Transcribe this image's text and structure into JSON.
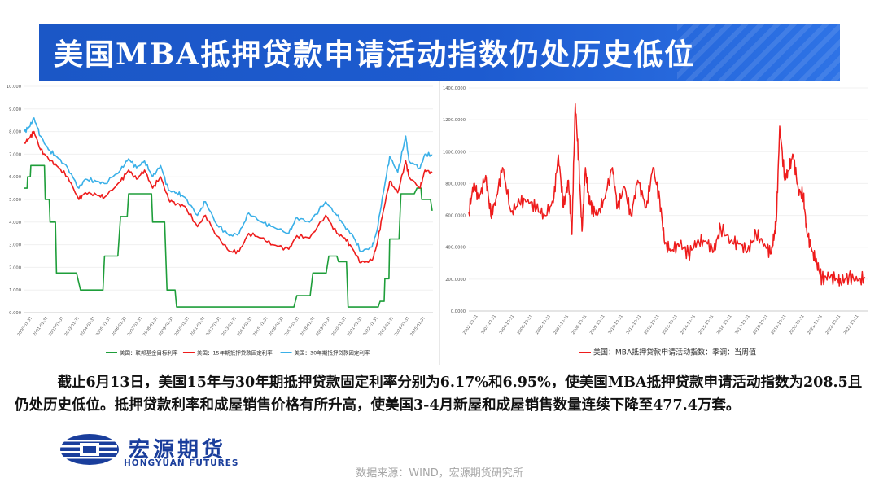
{
  "title": "美国MBA抵押贷款申请活动指数仍处历史低位",
  "description": "截止6月13日，美国15年与30年期抵押贷款固定利率分别为6.17%和6.95%，使美国MBA抵押贷款申请活动指数为208.5且仍处历史低位。抵押贷款利率和成屋销售价格有所升高，使美国3-4月新屋和成屋销售数量连续下降至477.4万套。",
  "logo": {
    "name_cn": "宏源期货",
    "name_en": "HONGYUAN FUTURES"
  },
  "source": "数据来源：WIND，宏源期货研究所",
  "colors": {
    "banner": "#1d5bd0",
    "green": "#1e9e3a",
    "red": "#ee1c1c",
    "blue": "#3ab0e8",
    "brand": "#1a3e9c"
  },
  "chart_data": [
    {
      "type": "line",
      "ylim": [
        0,
        10
      ],
      "y_ticks": [
        "0.000",
        "1.000",
        "2.000",
        "3.000",
        "4.000",
        "5.000",
        "6.000",
        "7.000",
        "8.000",
        "9.000",
        "10.000"
      ],
      "series": [
        {
          "name": "美国：联邦基金目标利率",
          "color": "#1e9e3a",
          "x": [
            2000.0,
            2000.2,
            2000.4,
            2001.0,
            2001.3,
            2001.6,
            2002.0,
            2003.5,
            2004.4,
            2005.0,
            2006.0,
            2006.5,
            2007.6,
            2008.0,
            2008.9,
            2009.5,
            2015.9,
            2017.0,
            2018.0,
            2019.0,
            2019.6,
            2020.2,
            2020.5,
            2021.5,
            2022.2,
            2022.5,
            2022.8,
            2023.5,
            2024.5,
            2024.8,
            2025.45
          ],
          "values": [
            5.5,
            6.0,
            6.5,
            6.5,
            5.0,
            4.0,
            1.75,
            1.0,
            1.0,
            2.5,
            4.25,
            5.25,
            5.25,
            4.0,
            1.0,
            0.25,
            0.25,
            0.75,
            1.75,
            2.5,
            2.25,
            0.25,
            0.25,
            0.25,
            0.5,
            1.5,
            3.25,
            5.25,
            5.5,
            5.0,
            4.5
          ]
        },
        {
          "name": "美国：15年期抵押贷款固定利率",
          "color": "#ee1c1c",
          "x": [
            2000.0,
            2000.3,
            2000.6,
            2001.0,
            2001.5,
            2002.0,
            2002.7,
            2003.4,
            2003.8,
            2004.5,
            2005.0,
            2006.0,
            2006.5,
            2007.0,
            2007.5,
            2008.0,
            2008.5,
            2009.0,
            2009.5,
            2010.0,
            2010.8,
            2011.3,
            2012.0,
            2012.8,
            2013.4,
            2014.0,
            2014.8,
            2015.5,
            2016.5,
            2017.0,
            2017.8,
            2018.8,
            2019.5,
            2020.0,
            2020.5,
            2021.0,
            2021.7,
            2022.0,
            2022.4,
            2022.8,
            2023.3,
            2023.8,
            2024.0,
            2024.7,
            2025.0,
            2025.45
          ],
          "values": [
            7.5,
            7.7,
            8.0,
            7.2,
            6.8,
            6.5,
            6.0,
            5.0,
            5.3,
            5.2,
            5.1,
            5.8,
            6.3,
            5.9,
            6.3,
            5.5,
            6.0,
            5.0,
            4.8,
            4.7,
            3.8,
            4.3,
            3.4,
            2.7,
            2.7,
            3.5,
            3.3,
            3.0,
            2.8,
            3.4,
            3.3,
            4.3,
            3.5,
            3.3,
            2.8,
            2.2,
            2.3,
            3.0,
            4.5,
            5.8,
            5.3,
            6.7,
            6.0,
            5.5,
            6.3,
            6.17
          ]
        },
        {
          "name": "美国：30年期抵押贷款固定利率",
          "color": "#3ab0e8",
          "x": [
            2000.0,
            2000.3,
            2000.6,
            2001.0,
            2001.5,
            2002.0,
            2002.7,
            2003.4,
            2003.8,
            2004.5,
            2005.0,
            2006.0,
            2006.5,
            2007.0,
            2007.5,
            2008.0,
            2008.5,
            2009.0,
            2009.5,
            2010.0,
            2010.8,
            2011.3,
            2012.0,
            2012.8,
            2013.4,
            2014.0,
            2014.8,
            2015.5,
            2016.5,
            2017.0,
            2017.8,
            2018.8,
            2019.5,
            2020.0,
            2020.5,
            2021.0,
            2021.7,
            2022.0,
            2022.4,
            2022.8,
            2023.3,
            2023.8,
            2024.0,
            2024.7,
            2025.0,
            2025.45
          ],
          "values": [
            8.0,
            8.2,
            8.6,
            7.8,
            7.2,
            6.9,
            6.4,
            5.5,
            5.9,
            5.8,
            5.7,
            6.3,
            6.8,
            6.4,
            6.7,
            6.0,
            6.5,
            5.4,
            5.3,
            5.1,
            4.3,
            4.9,
            3.9,
            3.4,
            3.5,
            4.4,
            4.0,
            3.8,
            3.5,
            4.2,
            4.0,
            4.9,
            4.3,
            3.8,
            3.4,
            2.7,
            2.9,
            3.6,
            5.3,
            6.9,
            6.2,
            7.8,
            6.7,
            6.4,
            7.0,
            6.95
          ]
        }
      ]
    },
    {
      "type": "line",
      "ylim": [
        0,
        1400
      ],
      "y_ticks": [
        "0.0000",
        "200.0000",
        "400.0000",
        "600.0000",
        "800.0000",
        "1000.0000",
        "1200.0000",
        "1400.0000"
      ],
      "series": [
        {
          "name": "美国：MBA抵押贷款申请活动指数：季调：当周值",
          "color": "#ee1c1c",
          "x": [
            2002.0,
            2002.3,
            2002.6,
            2003.0,
            2003.3,
            2003.6,
            2004.0,
            2004.5,
            2005.0,
            2005.5,
            2006.0,
            2006.5,
            2007.0,
            2007.3,
            2007.6,
            2007.9,
            2008.1,
            2008.3,
            2008.5,
            2008.7,
            2008.9,
            2009.1,
            2009.3,
            2009.6,
            2010.0,
            2010.5,
            2010.8,
            2011.2,
            2011.6,
            2012.0,
            2012.5,
            2012.9,
            2013.3,
            2013.6,
            2014.0,
            2014.5,
            2015.0,
            2015.5,
            2016.0,
            2016.5,
            2016.9,
            2017.5,
            2018.0,
            2018.5,
            2019.0,
            2019.5,
            2019.9,
            2020.1,
            2020.2,
            2020.4,
            2020.7,
            2020.9,
            2021.2,
            2021.5,
            2021.8,
            2022.0,
            2022.3,
            2022.6,
            2022.9,
            2023.3,
            2023.8,
            2024.0,
            2024.5,
            2025.0,
            2025.45
          ],
          "values": [
            620,
            800,
            700,
            850,
            600,
            700,
            900,
            620,
            680,
            700,
            640,
            600,
            680,
            980,
            650,
            820,
            480,
            1300,
            950,
            500,
            900,
            700,
            650,
            600,
            700,
            900,
            650,
            780,
            600,
            820,
            650,
            900,
            700,
            420,
            380,
            420,
            360,
            430,
            440,
            380,
            520,
            440,
            420,
            380,
            480,
            420,
            360,
            500,
            560,
            1160,
            820,
            880,
            980,
            760,
            720,
            500,
            380,
            300,
            200,
            220,
            200,
            180,
            220,
            190,
            208.5
          ]
        }
      ]
    }
  ],
  "left_x_ticks": [
    "2000-01-31",
    "2001-01-31",
    "2002-01-31",
    "2003-01-31",
    "2004-01-31",
    "2005-01-31",
    "2006-01-31",
    "2007-01-31",
    "2008-01-31",
    "2009-01-31",
    "2010-01-31",
    "2011-01-31",
    "2012-01-31",
    "2013-01-31",
    "2014-01-31",
    "2015-01-31",
    "2016-01-31",
    "2017-01-31",
    "2018-01-31",
    "2019-01-31",
    "2020-01-31",
    "2021-01-31",
    "2022-01-31",
    "2023-01-31",
    "2024-01-31",
    "2025-01-31"
  ],
  "right_x_ticks": [
    "2002-10-31",
    "2003-10-31",
    "2004-10-31",
    "2005-10-31",
    "2006-10-31",
    "2007-10-31",
    "2008-10-31",
    "2009-10-31",
    "2010-10-31",
    "2011-10-31",
    "2012-10-31",
    "2013-10-31",
    "2014-10-31",
    "2015-10-31",
    "2016-10-31",
    "2017-10-31",
    "2018-10-31",
    "2019-10-31",
    "2020-10-31",
    "2021-10-31",
    "2022-10-31",
    "2023-10-31"
  ]
}
